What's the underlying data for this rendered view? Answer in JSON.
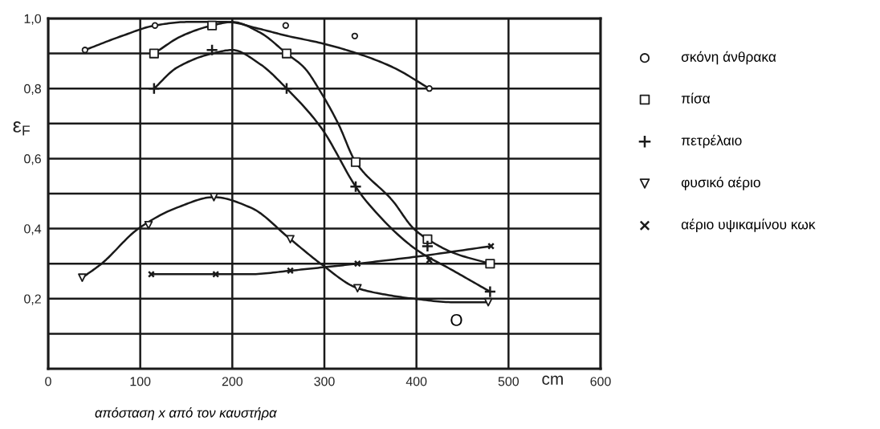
{
  "chart_data": {
    "type": "scatter",
    "xlabel": "cm",
    "ylabel": "ε$_{F}$",
    "annotations": [
      "απόσταση x από τον καυστήρα",
      "O"
    ],
    "xlim": [
      0,
      600
    ],
    "ylim": [
      0,
      1.0
    ],
    "xticks": [
      0,
      100,
      200,
      300,
      400,
      500,
      600
    ],
    "yticks": [
      {
        "value": 0.1,
        "label": null
      },
      {
        "value": 0.2,
        "label": "0,2"
      },
      {
        "value": 0.3,
        "label": null
      },
      {
        "value": 0.4,
        "label": "0,4"
      },
      {
        "value": 0.5,
        "label": null
      },
      {
        "value": 0.6,
        "label": "0,6"
      },
      {
        "value": 0.7,
        "label": null
      },
      {
        "value": 0.8,
        "label": "0,8"
      },
      {
        "value": 0.9,
        "label": null
      },
      {
        "value": 1.0,
        "label": "1,0"
      }
    ],
    "grid": true,
    "legend": "right",
    "series": [
      {
        "name": "σκόνη άνθρακα",
        "marker": "circle",
        "color": "#1a1a1a",
        "x": [
          40,
          116,
          258,
          333,
          414
        ],
        "values": [
          0.91,
          0.98,
          0.98,
          0.95,
          0.8
        ]
      },
      {
        "name": "πίσα",
        "marker": "square",
        "color": "#1a1a1a",
        "x": [
          115,
          178,
          259,
          334,
          412,
          480
        ],
        "values": [
          0.9,
          0.98,
          0.9,
          0.59,
          0.37,
          0.3
        ]
      },
      {
        "name": "πετρέλαιο",
        "marker": "cross",
        "color": "#1a1a1a",
        "x": [
          115,
          178,
          259,
          334,
          412,
          480
        ],
        "values": [
          0.8,
          0.91,
          0.8,
          0.52,
          0.35,
          0.22
        ]
      },
      {
        "name": "φυσικό αέριο",
        "marker": "triangle",
        "color": "#1a1a1a",
        "x": [
          37,
          109,
          180,
          263,
          336,
          478
        ],
        "values": [
          0.26,
          0.41,
          0.49,
          0.37,
          0.23,
          0.19
        ]
      },
      {
        "name": "αέριο υψικαμίνου κωκ",
        "marker": "x",
        "color": "#1a1a1a",
        "x": [
          112,
          182,
          263,
          336,
          414,
          481
        ],
        "values": [
          0.27,
          0.27,
          0.28,
          0.3,
          0.31,
          0.35
        ]
      },
      {
        "type": "line",
        "marker": "none",
        "color": "#1a1a1a",
        "x": [
          40,
          80,
          116,
          150,
          194,
          230,
          260,
          296,
          336,
          375,
          414
        ],
        "values": [
          0.91,
          0.95,
          0.98,
          0.99,
          0.99,
          0.97,
          0.95,
          0.93,
          0.9,
          0.86,
          0.8
        ]
      },
      {
        "type": "line",
        "marker": "none",
        "color": "#1a1a1a",
        "x": [
          115,
          145,
          178,
          200,
          230,
          259,
          278,
          296,
          315,
          334,
          374,
          397,
          412,
          441,
          480
        ],
        "values": [
          0.9,
          0.95,
          0.98,
          0.99,
          0.96,
          0.9,
          0.86,
          0.79,
          0.7,
          0.59,
          0.48,
          0.4,
          0.37,
          0.33,
          0.3
        ]
      },
      {
        "type": "line",
        "marker": "none",
        "color": "#1a1a1a",
        "x": [
          115,
          140,
          178,
          200,
          230,
          259,
          296,
          334,
          345,
          400,
          440,
          480
        ],
        "values": [
          0.8,
          0.86,
          0.9,
          0.91,
          0.87,
          0.8,
          0.69,
          0.52,
          0.48,
          0.34,
          0.28,
          0.22
        ]
      },
      {
        "type": "line",
        "marker": "none",
        "color": "#1a1a1a",
        "x": [
          37,
          58,
          98,
          140,
          180,
          220,
          263,
          296,
          336,
          370,
          397,
          440,
          478
        ],
        "values": [
          0.26,
          0.3,
          0.4,
          0.46,
          0.49,
          0.46,
          0.37,
          0.3,
          0.23,
          0.21,
          0.2,
          0.19,
          0.19
        ]
      },
      {
        "type": "line",
        "marker": "none",
        "color": "#1a1a1a",
        "x": [
          112,
          150,
          182,
          220,
          263,
          300,
          336,
          400,
          481
        ],
        "values": [
          0.27,
          0.27,
          0.27,
          0.27,
          0.28,
          0.29,
          0.3,
          0.32,
          0.35
        ]
      }
    ]
  }
}
